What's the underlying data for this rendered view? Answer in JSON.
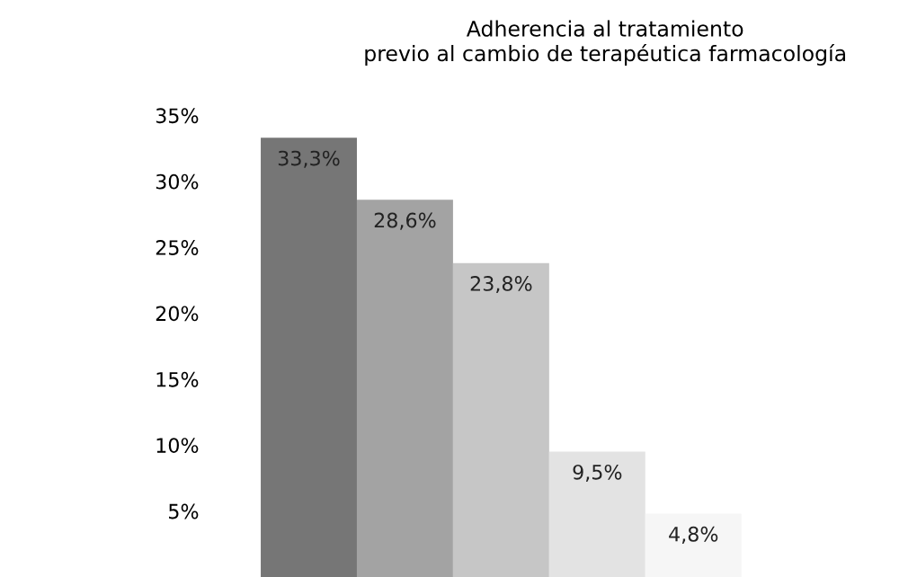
{
  "chart_data": {
    "type": "bar",
    "title": "Adherencia al tratamiento\nprevio al cambio de terapéutica farmacología",
    "categories": [
      null,
      null,
      null,
      null,
      null
    ],
    "values": [
      33.3,
      28.6,
      23.8,
      9.5,
      4.8
    ],
    "colors": [
      "#767676",
      "#a3a3a3",
      "#c6c6c6",
      "#e3e3e3",
      "#f6f6f6"
    ],
    "value_labels": [
      "33,3%",
      "28,6%",
      "23,8%",
      "9,5%",
      "4,8%"
    ],
    "ylim": [
      0,
      35
    ],
    "yticks": [
      {
        "value": 5,
        "label": "5%"
      },
      {
        "value": 10,
        "label": "10%"
      },
      {
        "value": 15,
        "label": "15%"
      },
      {
        "value": 20,
        "label": "20%"
      },
      {
        "value": 25,
        "label": "25%"
      },
      {
        "value": 30,
        "label": "30%"
      },
      {
        "value": 35,
        "label": "35%"
      }
    ],
    "grid": false,
    "legend": false
  }
}
